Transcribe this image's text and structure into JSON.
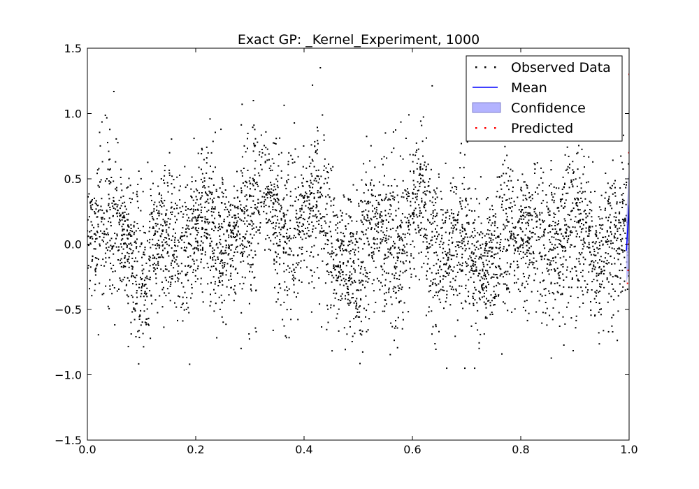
{
  "chart_data": {
    "type": "scatter",
    "title": "Exact GP: _Kernel_Experiment, 1000",
    "xlabel": "",
    "ylabel": "",
    "xlim": [
      0.0,
      1.0
    ],
    "ylim": [
      -1.5,
      1.5
    ],
    "x_ticks": [
      0.0,
      0.2,
      0.4,
      0.6,
      0.8,
      1.0
    ],
    "x_tick_labels": [
      "0.0",
      "0.2",
      "0.4",
      "0.6",
      "0.8",
      "1.0"
    ],
    "y_ticks": [
      1.5,
      1.0,
      0.5,
      0.0,
      -0.5,
      -1.0,
      -1.5
    ],
    "y_tick_labels": [
      "1.5",
      "1.0",
      "0.5",
      "0.0",
      "−0.5",
      "−1.0",
      "−1.5"
    ],
    "grid": false,
    "legend_position": "top-right",
    "legend": [
      {
        "label": "Observed Data",
        "kind": "points",
        "color": "#000000"
      },
      {
        "label": "Mean",
        "kind": "line",
        "color": "#0000ff"
      },
      {
        "label": "Confidence",
        "kind": "patch",
        "color": "#b3b3ff"
      },
      {
        "label": "Predicted",
        "kind": "points",
        "color": "#ff0000"
      }
    ],
    "observed": {
      "name": "Observed Data",
      "color": "#000000",
      "x_range": [
        0.0,
        1.0
      ],
      "n_points": 4500,
      "trend_x": [
        0.0,
        0.03,
        0.05,
        0.1,
        0.14,
        0.18,
        0.21,
        0.26,
        0.29,
        0.33,
        0.37,
        0.42,
        0.46,
        0.5,
        0.53,
        0.57,
        0.61,
        0.65,
        0.69,
        0.73,
        0.78,
        0.82,
        0.86,
        0.9,
        0.94,
        1.0
      ],
      "trend_y": [
        0.0,
        0.2,
        0.15,
        -0.25,
        0.1,
        -0.05,
        0.2,
        0.0,
        0.15,
        0.4,
        0.05,
        0.35,
        -0.1,
        -0.2,
        0.1,
        -0.05,
        0.35,
        -0.1,
        0.05,
        -0.2,
        0.1,
        0.05,
        -0.05,
        0.2,
        -0.1,
        0.15
      ]
    },
    "mean": {
      "name": "Mean",
      "color": "#0000ff",
      "x": [
        0.995,
        1.0
      ],
      "y": [
        -0.05,
        0.3
      ]
    },
    "confidence": {
      "name": "Confidence",
      "color": "#b3b3ff",
      "x": [
        0.995,
        1.0
      ],
      "lower": [
        -0.3,
        -0.2
      ],
      "upper": [
        0.2,
        0.6
      ]
    },
    "predicted": {
      "name": "Predicted",
      "color": "#ff0000",
      "x": [
        0.997,
        0.998,
        0.999,
        0.9995,
        1.0
      ],
      "y": [
        -0.3,
        -0.2,
        0.0,
        0.7,
        1.3
      ]
    }
  }
}
